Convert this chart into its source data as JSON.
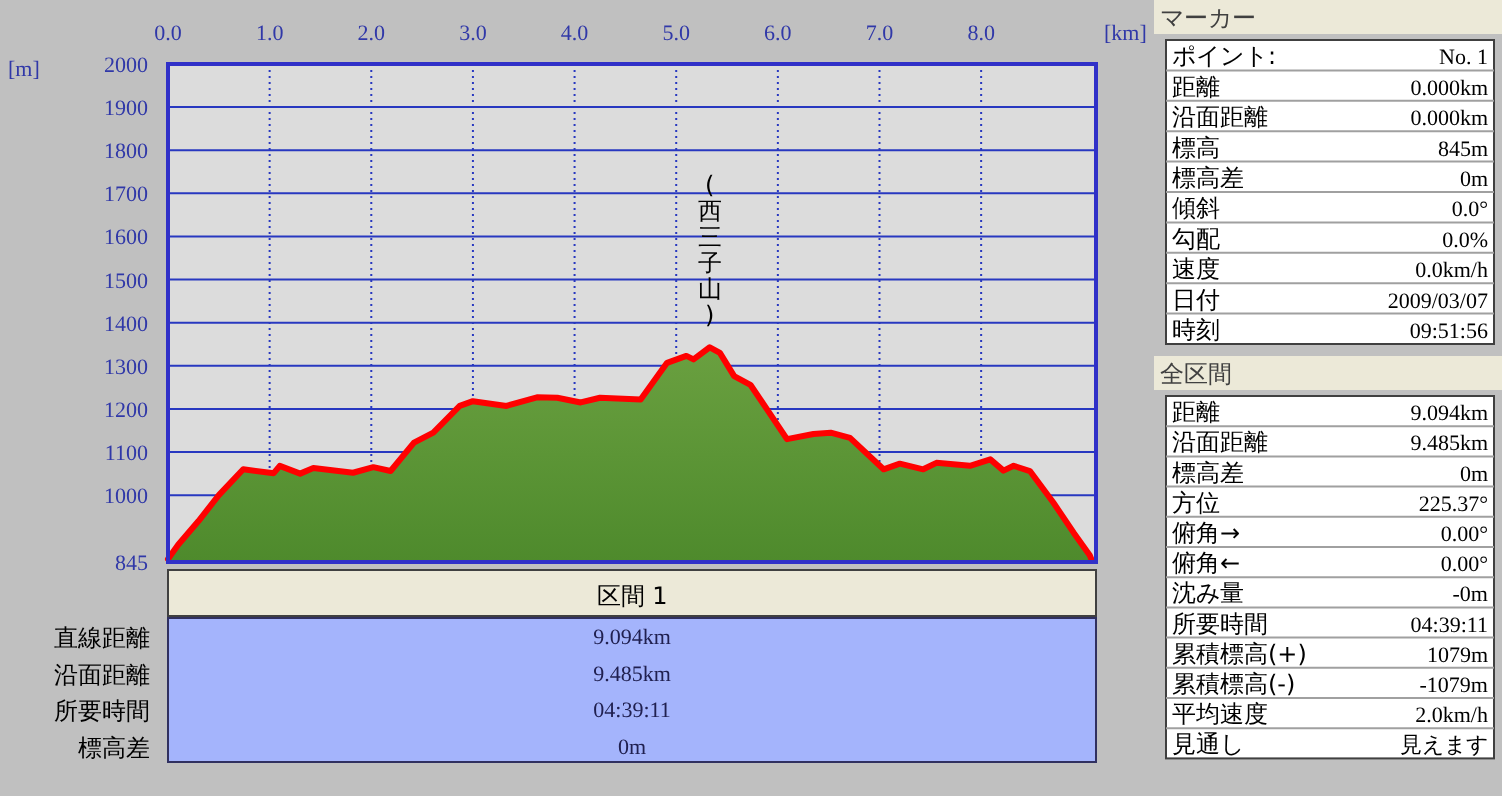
{
  "chart_data": [
    {
      "type": "area",
      "xlabel": "[km]",
      "ylabel": "[m]",
      "xlim": [
        0,
        9.13
      ],
      "ylim": [
        845,
        2000
      ],
      "xticks": [
        {
          "value": 0,
          "label": "0.0"
        },
        {
          "value": 1,
          "label": "1.0"
        },
        {
          "value": 2,
          "label": "2.0"
        },
        {
          "value": 3,
          "label": "3.0"
        },
        {
          "value": 4,
          "label": "4.0"
        },
        {
          "value": 5,
          "label": "5.0"
        },
        {
          "value": 6,
          "label": "6.0"
        },
        {
          "value": 7,
          "label": "7.0"
        },
        {
          "value": 8,
          "label": "8.0"
        }
      ],
      "yticks": [
        845,
        1000,
        1100,
        1200,
        1300,
        1400,
        1500,
        1600,
        1700,
        1800,
        1900,
        2000
      ],
      "grid": true,
      "annotations": [
        {
          "text": "(西三子山)",
          "x": 5.33,
          "y": 1343
        }
      ],
      "series": [
        {
          "color": "#ff0000",
          "x": [
            0,
            0.1,
            0.3,
            0.5,
            0.74,
            1.04,
            1.1,
            1.3,
            1.43,
            1.82,
            2.02,
            2.19,
            2.42,
            2.61,
            2.87,
            3.0,
            3.33,
            3.63,
            3.83,
            4.06,
            4.25,
            4.65,
            4.91,
            5.1,
            5.17,
            5.33,
            5.43,
            5.57,
            5.73,
            6.09,
            6.35,
            6.52,
            6.71,
            7.04,
            7.2,
            7.43,
            7.56,
            7.89,
            8.09,
            8.22,
            8.32,
            8.48,
            8.71,
            8.91,
            9.07,
            9.09
          ],
          "values": [
            852,
            885,
            940,
            1000,
            1060,
            1051,
            1068,
            1050,
            1063,
            1052,
            1065,
            1056,
            1122,
            1145,
            1207,
            1218,
            1207,
            1227,
            1226,
            1215,
            1226,
            1222,
            1307,
            1323,
            1315,
            1343,
            1330,
            1276,
            1256,
            1130,
            1142,
            1145,
            1133,
            1060,
            1073,
            1060,
            1075,
            1068,
            1083,
            1057,
            1068,
            1056,
            983,
            913,
            860,
            848
          ]
        }
      ]
    },
    {
      "type": "other",
      "title": "区間 1",
      "annotations": [
        "直線距離",
        "9.094km",
        "沿面距離",
        "9.485km",
        "所要時間",
        "04:39:11",
        "標高差",
        "0m"
      ]
    },
    {
      "type": "other",
      "title": "マーカー",
      "annotations": [
        "ポイント:",
        "No. 1",
        "距離",
        "0.000km",
        "沿面距離",
        "0.000km",
        "標高",
        "845m",
        "標高差",
        "0m",
        "傾斜",
        "0.0°",
        "勾配",
        "0.0%",
        "速度",
        "0.0km/h",
        "日付",
        "2009/03/07",
        "時刻",
        "09:51:56"
      ]
    },
    {
      "type": "other",
      "title": "全区間",
      "annotations": [
        "距離",
        "9.094km",
        "沿面距離",
        "9.485km",
        "標高差",
        "0m",
        "方位",
        "225.37°",
        "俯角→",
        "0.00°",
        "俯角←",
        "0.00°",
        "沈み量",
        "-0m",
        "所要時間",
        "04:39:11",
        "累積標高(+)",
        "1079m",
        "累積標高(-)",
        "-1079m",
        "平均速度",
        "2.0km/h",
        "見通し",
        "見えます"
      ]
    }
  ]
}
